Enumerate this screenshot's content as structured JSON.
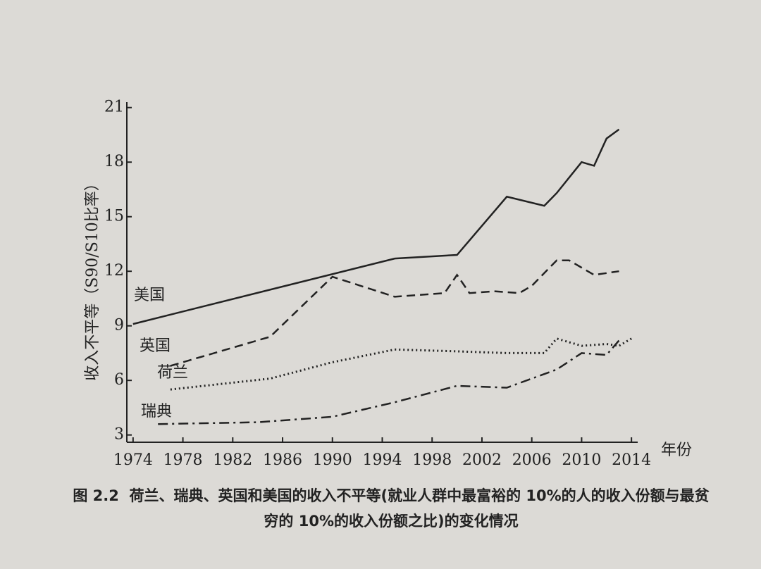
{
  "chart_data": {
    "type": "line",
    "y_label": "收入不平等（S90/S10比率）",
    "x_label": "年份",
    "caption_label": "图 2.2",
    "caption": "荷兰、瑞典、英国和美国的收入不平等(就业人群中最富裕的 10%的人的收入份额与最贫穷的 10%的收入份额之比)的变化情况",
    "xlim": [
      1973.5,
      2014.5
    ],
    "xticks": [
      1974,
      1978,
      1982,
      1986,
      1990,
      1994,
      1998,
      2002,
      2006,
      2010,
      2014
    ],
    "ylim": [
      2.6,
      21.3
    ],
    "yticks": [
      3,
      6,
      9,
      12,
      15,
      18,
      21
    ],
    "color": "#222222",
    "series": [
      {
        "name": "美国",
        "dash": "solid",
        "x": [
          1974,
          1995,
          2000,
          2004,
          2007,
          2008,
          2010,
          2011,
          2012,
          2013
        ],
        "values": [
          9.1,
          12.7,
          12.9,
          16.1,
          15.6,
          16.3,
          18.0,
          17.8,
          19.3,
          19.8
        ]
      },
      {
        "name": "英国",
        "dash": "dashed",
        "x": [
          1977,
          1985,
          1990,
          1995,
          1999,
          2000,
          2001,
          2003,
          2005,
          2006,
          2008,
          2009,
          2011,
          2013
        ],
        "values": [
          6.8,
          8.4,
          11.7,
          10.6,
          10.8,
          11.8,
          10.8,
          10.9,
          10.8,
          11.2,
          12.6,
          12.6,
          11.8,
          12.0
        ]
      },
      {
        "name": "荷兰",
        "dash": "dotted",
        "x": [
          1977,
          1985,
          1990,
          1995,
          2000,
          2004,
          2007,
          2008,
          2010,
          2012,
          2013,
          2014
        ],
        "values": [
          5.5,
          6.1,
          7.0,
          7.7,
          7.6,
          7.5,
          7.5,
          8.3,
          7.9,
          8.0,
          7.9,
          8.3
        ]
      },
      {
        "name": "瑞典",
        "dash": "dashdot",
        "x": [
          1976,
          1984,
          1990,
          1995,
          2000,
          2004,
          2008,
          2010,
          2012,
          2013
        ],
        "values": [
          3.6,
          3.7,
          4.0,
          4.8,
          5.7,
          5.6,
          6.6,
          7.5,
          7.4,
          8.2
        ]
      }
    ]
  }
}
